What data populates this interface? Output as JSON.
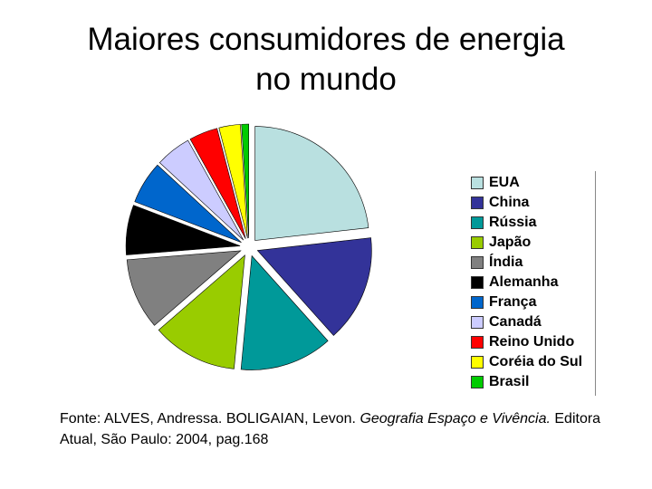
{
  "title_lines": [
    "Maiores consumidores de energia",
    "no mundo"
  ],
  "source": {
    "prefix": "Fonte: ALVES, Andressa. BOLIGAIAN, Levon. ",
    "book": "Geografia Espaço e Vivência.",
    "suffix": " Editora Atual, São Paulo: 2004, pag.168"
  },
  "chart_data": {
    "type": "pie",
    "exploded": true,
    "legend_position": "right",
    "slices": [
      {
        "label": "EUA",
        "value": 23.0,
        "color": "#b9e0e0"
      },
      {
        "label": "China",
        "value": 15.0,
        "color": "#333399"
      },
      {
        "label": "Rússia",
        "value": 13.0,
        "color": "#009999"
      },
      {
        "label": "Japão",
        "value": 12.0,
        "color": "#99cc00"
      },
      {
        "label": "Índia",
        "value": 10.0,
        "color": "#808080"
      },
      {
        "label": "Alemanha",
        "value": 7.0,
        "color": "#000000"
      },
      {
        "label": "França",
        "value": 6.0,
        "color": "#0066cc"
      },
      {
        "label": "Canadá",
        "value": 5.0,
        "color": "#ccccff"
      },
      {
        "label": "Reino Unido",
        "value": 4.0,
        "color": "#ff0000"
      },
      {
        "label": "Coréia do Sul",
        "value": 3.0,
        "color": "#ffff00"
      },
      {
        "label": "Brasil",
        "value": 1.0,
        "color": "#00cc00"
      }
    ]
  }
}
